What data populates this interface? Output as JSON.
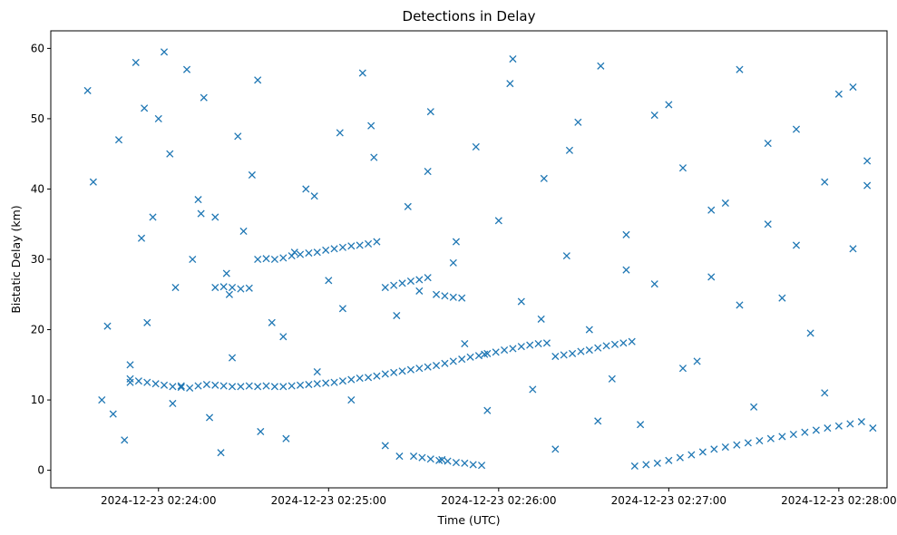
{
  "chart_data": {
    "type": "scatter",
    "title": "Detections in Delay",
    "xlabel": "Time (UTC)",
    "ylabel": "Bistatic Delay (km)",
    "x_axis_type": "time",
    "xlim": [
      "2024-12-23 02:23:22",
      "2024-12-23 02:28:17"
    ],
    "ylim": [
      -2.5,
      62.5
    ],
    "xticks": [
      "2024-12-23 02:24:00",
      "2024-12-23 02:25:00",
      "2024-12-23 02:26:00",
      "2024-12-23 02:27:00",
      "2024-12-23 02:28:00"
    ],
    "yticks": [
      0,
      10,
      20,
      30,
      40,
      50,
      60
    ],
    "grid": false,
    "legend": "none",
    "marker": "x",
    "color": "#1f77b4",
    "series": [
      {
        "x": [
          "2024-12-23 02:23:35",
          "2024-12-23 02:23:37",
          "2024-12-23 02:23:40",
          "2024-12-23 02:23:42",
          "2024-12-23 02:23:44",
          "2024-12-23 02:23:46",
          "2024-12-23 02:23:48",
          "2024-12-23 02:23:50",
          "2024-12-23 02:23:52",
          "2024-12-23 02:23:54",
          "2024-12-23 02:23:56",
          "2024-12-23 02:23:58",
          "2024-12-23 02:24:00",
          "2024-12-23 02:24:02",
          "2024-12-23 02:24:04",
          "2024-12-23 02:24:06",
          "2024-12-23 02:24:08",
          "2024-12-23 02:24:10",
          "2024-12-23 02:24:12",
          "2024-12-23 02:24:14",
          "2024-12-23 02:24:16",
          "2024-12-23 02:24:18",
          "2024-12-23 02:24:20",
          "2024-12-23 02:24:22",
          "2024-12-23 02:24:24",
          "2024-12-23 02:24:26",
          "2024-12-23 02:24:28",
          "2024-12-23 02:24:30",
          "2024-12-23 02:24:33",
          "2024-12-23 02:24:36",
          "2024-12-23 02:24:40",
          "2024-12-23 02:24:44",
          "2024-12-23 02:24:48",
          "2024-12-23 02:24:52",
          "2024-12-23 02:24:56",
          "2024-12-23 02:25:00",
          "2024-12-23 02:25:04",
          "2024-12-23 02:25:08",
          "2024-12-23 02:25:12",
          "2024-12-23 02:25:16",
          "2024-12-23 02:25:20",
          "2024-12-23 02:25:24",
          "2024-12-23 02:25:28",
          "2024-12-23 02:25:32",
          "2024-12-23 02:25:36",
          "2024-12-23 02:25:40",
          "2024-12-23 02:25:44",
          "2024-12-23 02:25:48",
          "2024-12-23 02:25:52",
          "2024-12-23 02:25:56",
          "2024-12-23 02:26:00",
          "2024-12-23 02:26:04",
          "2024-12-23 02:26:08",
          "2024-12-23 02:26:12",
          "2024-12-23 02:26:16",
          "2024-12-23 02:26:20",
          "2024-12-23 02:26:24",
          "2024-12-23 02:26:28",
          "2024-12-23 02:26:32",
          "2024-12-23 02:26:36",
          "2024-12-23 02:26:40",
          "2024-12-23 02:26:45",
          "2024-12-23 02:26:50",
          "2024-12-23 02:26:55",
          "2024-12-23 02:27:00",
          "2024-12-23 02:27:05",
          "2024-12-23 02:27:10",
          "2024-12-23 02:27:15",
          "2024-12-23 02:27:20",
          "2024-12-23 02:27:25",
          "2024-12-23 02:27:30",
          "2024-12-23 02:27:35",
          "2024-12-23 02:27:40",
          "2024-12-23 02:27:45",
          "2024-12-23 02:27:50",
          "2024-12-23 02:27:55",
          "2024-12-23 02:28:00",
          "2024-12-23 02:28:05",
          "2024-12-23 02:28:10",
          "2024-12-23 02:28:12",
          "2024-12-23 02:23:50",
          "2024-12-23 02:23:55",
          "2024-12-23 02:24:05",
          "2024-12-23 02:24:15",
          "2024-12-23 02:24:25",
          "2024-12-23 02:24:35",
          "2024-12-23 02:24:45",
          "2024-12-23 02:24:55",
          "2024-12-23 02:25:05",
          "2024-12-23 02:25:15",
          "2024-12-23 02:25:25",
          "2024-12-23 02:25:35",
          "2024-12-23 02:25:45",
          "2024-12-23 02:25:55",
          "2024-12-23 02:26:05",
          "2024-12-23 02:26:15",
          "2024-12-23 02:26:25",
          "2024-12-23 02:26:35",
          "2024-12-23 02:26:45",
          "2024-12-23 02:26:55",
          "2024-12-23 02:27:05",
          "2024-12-23 02:27:15",
          "2024-12-23 02:27:25",
          "2024-12-23 02:27:35",
          "2024-12-23 02:27:45",
          "2024-12-23 02:27:55",
          "2024-12-23 02:28:05",
          "2024-12-23 02:28:10"
        ],
        "y": [
          54.0,
          41.0,
          10.0,
          20.5,
          8.0,
          47.0,
          4.3,
          15.0,
          58.0,
          33.0,
          21.0,
          36.0,
          50.0,
          59.5,
          45.0,
          26.0,
          12.0,
          57.0,
          30.0,
          38.5,
          53.0,
          7.5,
          36.0,
          2.5,
          28.0,
          16.0,
          47.5,
          34.0,
          42.0,
          5.5,
          21.0,
          19.0,
          31.0,
          40.0,
          14.0,
          27.0,
          48.0,
          10.0,
          56.5,
          44.5,
          3.5,
          22.0,
          37.5,
          25.5,
          51.0,
          1.5,
          29.5,
          18.0,
          46.0,
          8.5,
          35.5,
          55.0,
          24.0,
          11.5,
          41.5,
          3.0,
          30.5,
          49.5,
          20.0,
          57.5,
          13.0,
          33.5,
          6.5,
          26.5,
          52.0,
          43.0,
          15.5,
          27.5,
          38.0,
          57.0,
          9.0,
          35.0,
          24.5,
          48.5,
          19.5,
          41.0,
          53.5,
          31.5,
          44.0,
          6.0,
          12.5,
          51.5,
          9.5,
          36.5,
          25.0,
          55.5,
          4.5,
          39.0,
          23.0,
          49.0,
          2.0,
          42.5,
          32.5,
          16.5,
          58.5,
          21.5,
          45.5,
          7.0,
          28.5,
          50.5,
          14.5,
          37.0,
          23.5,
          46.5,
          32.0,
          11.0,
          54.5,
          40.5
        ]
      },
      {
        "x": [
          "2024-12-23 02:23:50",
          "2024-12-23 02:23:53",
          "2024-12-23 02:23:56",
          "2024-12-23 02:23:59",
          "2024-12-23 02:24:02",
          "2024-12-23 02:24:05",
          "2024-12-23 02:24:08",
          "2024-12-23 02:24:11",
          "2024-12-23 02:24:14",
          "2024-12-23 02:24:17",
          "2024-12-23 02:24:20",
          "2024-12-23 02:24:23",
          "2024-12-23 02:24:26",
          "2024-12-23 02:24:29",
          "2024-12-23 02:24:32",
          "2024-12-23 02:24:35",
          "2024-12-23 02:24:38",
          "2024-12-23 02:24:41",
          "2024-12-23 02:24:44",
          "2024-12-23 02:24:47",
          "2024-12-23 02:24:50",
          "2024-12-23 02:24:53",
          "2024-12-23 02:24:56",
          "2024-12-23 02:24:59",
          "2024-12-23 02:25:02",
          "2024-12-23 02:25:05",
          "2024-12-23 02:25:08",
          "2024-12-23 02:25:11",
          "2024-12-23 02:25:14",
          "2024-12-23 02:25:17",
          "2024-12-23 02:25:20",
          "2024-12-23 02:25:23",
          "2024-12-23 02:25:26",
          "2024-12-23 02:25:29",
          "2024-12-23 02:25:32",
          "2024-12-23 02:25:35",
          "2024-12-23 02:25:38",
          "2024-12-23 02:25:41",
          "2024-12-23 02:25:44",
          "2024-12-23 02:25:47",
          "2024-12-23 02:25:50",
          "2024-12-23 02:25:53",
          "2024-12-23 02:25:56",
          "2024-12-23 02:25:59",
          "2024-12-23 02:26:02",
          "2024-12-23 02:26:05",
          "2024-12-23 02:26:08",
          "2024-12-23 02:26:11",
          "2024-12-23 02:26:14",
          "2024-12-23 02:26:17",
          "2024-12-23 02:26:20",
          "2024-12-23 02:26:23",
          "2024-12-23 02:26:26",
          "2024-12-23 02:26:29",
          "2024-12-23 02:26:32",
          "2024-12-23 02:26:35",
          "2024-12-23 02:26:38",
          "2024-12-23 02:26:41",
          "2024-12-23 02:26:44",
          "2024-12-23 02:26:47"
        ],
        "y": [
          13.0,
          12.7,
          12.5,
          12.3,
          12.1,
          11.9,
          11.8,
          11.7,
          12.0,
          12.2,
          12.1,
          12.0,
          11.9,
          11.9,
          12.0,
          11.9,
          12.0,
          11.9,
          11.9,
          12.0,
          12.1,
          12.2,
          12.3,
          12.4,
          12.5,
          12.7,
          12.9,
          13.1,
          13.2,
          13.4,
          13.7,
          13.9,
          14.1,
          14.3,
          14.5,
          14.7,
          14.9,
          15.2,
          15.5,
          15.8,
          16.1,
          16.3,
          16.6,
          16.8,
          17.1,
          17.3,
          17.6,
          17.8,
          18.0,
          18.1,
          16.2,
          16.4,
          16.6,
          16.9,
          17.1,
          17.4,
          17.7,
          17.9,
          18.1,
          18.3
        ]
      },
      {
        "x": [
          "2024-12-23 02:26:48",
          "2024-12-23 02:26:52",
          "2024-12-23 02:26:56",
          "2024-12-23 02:27:00",
          "2024-12-23 02:27:04",
          "2024-12-23 02:27:08",
          "2024-12-23 02:27:12",
          "2024-12-23 02:27:16",
          "2024-12-23 02:27:20",
          "2024-12-23 02:27:24",
          "2024-12-23 02:27:28",
          "2024-12-23 02:27:32",
          "2024-12-23 02:27:36",
          "2024-12-23 02:27:40",
          "2024-12-23 02:27:44",
          "2024-12-23 02:27:48",
          "2024-12-23 02:27:52",
          "2024-12-23 02:27:56",
          "2024-12-23 02:28:00",
          "2024-12-23 02:28:04",
          "2024-12-23 02:28:08"
        ],
        "y": [
          0.6,
          0.8,
          1.0,
          1.4,
          1.8,
          2.2,
          2.6,
          3.0,
          3.3,
          3.6,
          3.9,
          4.2,
          4.5,
          4.8,
          5.1,
          5.4,
          5.7,
          6.0,
          6.3,
          6.6,
          6.9
        ]
      },
      {
        "x": [
          "2024-12-23 02:24:20",
          "2024-12-23 02:24:23",
          "2024-12-23 02:24:26",
          "2024-12-23 02:24:29",
          "2024-12-23 02:24:32",
          "2024-12-23 02:24:35",
          "2024-12-23 02:24:38",
          "2024-12-23 02:24:41",
          "2024-12-23 02:24:44",
          "2024-12-23 02:24:47",
          "2024-12-23 02:24:50",
          "2024-12-23 02:24:53",
          "2024-12-23 02:24:56",
          "2024-12-23 02:24:59",
          "2024-12-23 02:25:02",
          "2024-12-23 02:25:05",
          "2024-12-23 02:25:08",
          "2024-12-23 02:25:11",
          "2024-12-23 02:25:14",
          "2024-12-23 02:25:17",
          "2024-12-23 02:25:20",
          "2024-12-23 02:25:23",
          "2024-12-23 02:25:26",
          "2024-12-23 02:25:29",
          "2024-12-23 02:25:32",
          "2024-12-23 02:25:35",
          "2024-12-23 02:25:38",
          "2024-12-23 02:25:41",
          "2024-12-23 02:25:44",
          "2024-12-23 02:25:47"
        ],
        "y": [
          26.0,
          26.1,
          26.0,
          25.8,
          25.9,
          30.0,
          30.1,
          30.0,
          30.2,
          30.5,
          30.7,
          30.9,
          31.0,
          31.3,
          31.5,
          31.7,
          31.9,
          32.0,
          32.2,
          32.5,
          26.0,
          26.3,
          26.6,
          26.9,
          27.1,
          27.4,
          25.0,
          24.8,
          24.6,
          24.5
        ]
      },
      {
        "x": [
          "2024-12-23 02:25:30",
          "2024-12-23 02:25:33",
          "2024-12-23 02:25:36",
          "2024-12-23 02:25:39",
          "2024-12-23 02:25:42",
          "2024-12-23 02:25:45",
          "2024-12-23 02:25:48",
          "2024-12-23 02:25:51",
          "2024-12-23 02:25:54"
        ],
        "y": [
          2.0,
          1.8,
          1.6,
          1.4,
          1.3,
          1.1,
          1.0,
          0.8,
          0.7
        ]
      }
    ]
  }
}
